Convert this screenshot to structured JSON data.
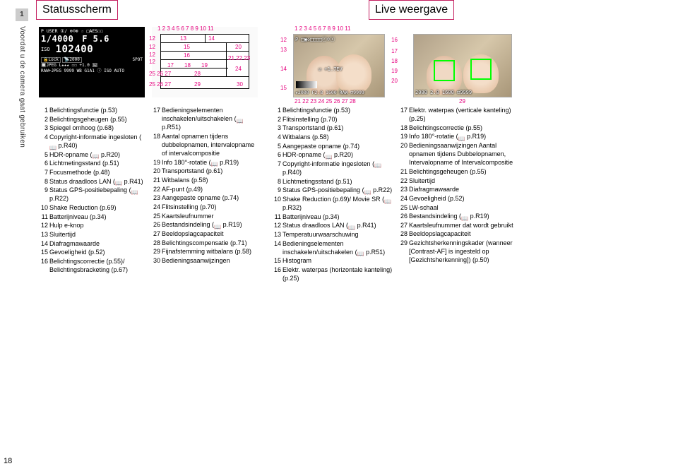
{
  "side": {
    "chapter": "1",
    "title": "Voordat u de camera gaat gebruiken"
  },
  "pagenum": "18",
  "status_title": "Statusscherm",
  "live_title": "Live weergave",
  "lcd": {
    "row1": "P   USER ①/ ⊕☺⊛ ☆ □AES☐☐",
    "exp1": "1/4000",
    "exp2": "F 5.6",
    "iso": "102400",
    "row4a": "🔒Lock",
    "row4b": "📡2000",
    "row4c": "SPOT",
    "row5": "🔲JPEG L★★★ ☐☐ +1.0 🖼",
    "row6": "RAW+JPEG 9999 WB G1A1   ⓘ ISO AUTO"
  },
  "status_left": [
    "Belichtingsfunctie (p.53)",
    "Belichtingsgeheugen (p.55)",
    "Spiegel omhoog (p.68)",
    "Copyright-informatie ingesloten (📖 p.R40)",
    "HDR-opname (📖 p.R20)",
    "Lichtmetingsstand (p.51)",
    "Focusmethode (p.48)",
    "Status draadloos LAN (📖 p.R41)",
    "Status GPS-positiebepaling (📖 p.R22)",
    "Shake Reduction (p.69)",
    "Batterijniveau (p.34)",
    "Hulp e-knop",
    "Sluitertijd",
    "Diafragmawaarde",
    "Gevoeligheid (p.52)",
    "Belichtingscorrectie (p.55)/ Belichtingsbracketing (p.67)"
  ],
  "status_right_start": 17,
  "status_right": [
    "Bedieningselementen inschakelen/uitschakelen (📖 p.R51)",
    "Aantal opnamen tijdens dubbelopnamen, intervalopname of intervalcompositie",
    "Info 180°-rotatie (📖 p.R19)",
    "Transportstand (p.61)",
    "Witbalans (p.58)",
    "AF-punt (p.49)",
    "Aangepaste opname (p.74)",
    "Flitsinstelling (p.70)",
    "Kaartsleufnummer",
    "Bestandsindeling (📖 p.R19)",
    "Beeldopslagcapaciteit",
    "Belichtingscompensatie (p.71)",
    "Fijnafstemming witbalans (p.58)",
    "Bedieningsaanwijzingen"
  ],
  "live_left": [
    "Belichtingsfunctie (p.53)",
    "Flitsinstelling (p.70)",
    "Transportstand (p.61)",
    "Witbalans (p.58)",
    "Aangepaste opname (p.74)",
    "HDR-opname (📖 p.R20)",
    "Copyright-informatie ingesloten (📖 p.R40)",
    "Lichtmetingsstand (p.51)",
    "Status GPS-positiebepaling (📖 p.R22)",
    "Shake Reduction (p.69)/ Movie SR (📖 p.R32)",
    "Batterijniveau (p.34)",
    "Status draadloos LAN (📖 p.R41)",
    "Temperatuurwaarschuwing",
    "Bedieningselementen inschakelen/uitschakelen (📖 p.R51)",
    "Histogram",
    "Elektr. waterpas (horizontale kanteling) (p.25)"
  ],
  "live_right_start": 17,
  "live_right": [
    "Elektr. waterpas (verticale kanteling) (p.25)",
    "Belichtingscorrectie (p.55)",
    "Info 180°-rotatie (📖 p.R19)",
    "Bedieningsaanwijzingen Aantal opnamen tijdens Dubbelopnamen, Intervalopname of Intervalcompositie",
    "Belichtingsgeheugen (p.55)",
    "Sluitertijd",
    "Diafragmawaarde",
    "Gevoeligheid (p.52)",
    "LW-schaal",
    "Bestandsindeling (📖 p.R19)",
    "Kaartsleufnummer dat wordt gebruikt",
    "Beeldopslagcapaciteit",
    "Gezichtsherkenningskader (wanneer [Contrast-AF] is ingesteld op [Gezichtsherkenning]) (p.50)"
  ],
  "status_diag_labels": {
    "top": "1   2 3 4 5 6 7 8 9 10 11",
    "l1": "12",
    "r1": "14",
    "m1": "13",
    "l2": "12",
    "m2": "15",
    "r2": "20",
    "l3": "12",
    "l4": "12",
    "m3": "16",
    "r3": "21  22  23",
    "l5": "17",
    "l6": "18",
    "l7": "19",
    "r4": "24",
    "b1": "25 26 27",
    "b2": "28",
    "b3": "25 26 27",
    "b4": "29",
    "r5": "30"
  },
  "live_diag1_labels": {
    "top": "1 2 3 4 5 6   7 8 9 10 11",
    "l1": "12",
    "l2": "13",
    "l3": "14",
    "l4": "15",
    "r1": "16",
    "r2": "17",
    "r3": "18",
    "r4": "19",
    "r5": "20",
    "bot": "21 22 23  24 25 26 27 28",
    "botr": "29",
    "ov_top": "P □▣◇□□□□ⓒ☺ⓢ",
    "ov_ev": "☑ +1.7EV",
    "ov_bot": "★2000 F2.8  1600 RAW ⊡9999"
  },
  "live_diag2_overlay": {
    "bot": "   2000   2.8   1600   ⊡9999"
  }
}
